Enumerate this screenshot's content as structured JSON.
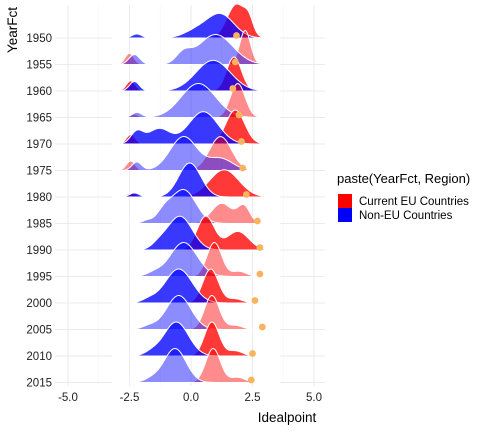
{
  "chart_data": {
    "type": "ridgeline",
    "xlabel": "Idealpoint",
    "ylabel": "YearFct",
    "xlim": [
      -5.0,
      5.0
    ],
    "x_ticks": [
      -5.0,
      -2.5,
      0.0,
      2.5,
      5.0
    ],
    "x_tick_labels": [
      "-5.0",
      "-2.5",
      "0.0",
      "2.5",
      "5.0"
    ],
    "categories": [
      "1950",
      "1955",
      "1960",
      "1965",
      "1970",
      "1975",
      "1980",
      "1985",
      "1990",
      "1995",
      "2000",
      "2005",
      "2010",
      "2015"
    ],
    "grid": true,
    "legend": {
      "title": "paste(YearFct, Region)",
      "position": "right",
      "entries": [
        "Current EU Countries",
        "Non-EU Countries"
      ]
    },
    "series_colors": {
      "Current EU Countries": "#ff0000",
      "Non-EU Countries": "#0000ff"
    },
    "point_color": "#f7b35d",
    "opacity_alternation": "even years lighter",
    "ridges": [
      {
        "year": "1950",
        "eu": [
          [
            1.85,
            0.38,
            1.0
          ],
          [
            2.35,
            0.18,
            0.35
          ]
        ],
        "noneu": [
          [
            1.2,
            0.55,
            0.7
          ],
          [
            -2.2,
            0.2,
            0.12
          ],
          [
            0.2,
            0.5,
            0.2
          ]
        ],
        "point": 1.85
      },
      {
        "year": "1955",
        "eu": [
          [
            2.2,
            0.22,
            0.85
          ],
          [
            -2.5,
            0.18,
            0.28
          ]
        ],
        "noneu": [
          [
            1.0,
            0.7,
            0.75
          ],
          [
            -2.3,
            0.22,
            0.25
          ],
          [
            -0.3,
            0.3,
            0.25
          ]
        ],
        "point": 1.8
      },
      {
        "year": "1960",
        "eu": [
          [
            1.75,
            0.3,
            1.0
          ],
          [
            -2.45,
            0.18,
            0.3
          ]
        ],
        "noneu": [
          [
            0.9,
            0.7,
            0.9
          ],
          [
            -2.3,
            0.2,
            0.28
          ]
        ],
        "point": 1.7
      },
      {
        "year": "1965",
        "eu": [
          [
            1.9,
            0.3,
            1.0
          ],
          [
            -2.3,
            0.15,
            0.1
          ]
        ],
        "noneu": [
          [
            0.3,
            0.7,
            1.0
          ],
          [
            -2.2,
            0.2,
            0.15
          ]
        ],
        "point": 1.95
      },
      {
        "year": "1970",
        "eu": [
          [
            1.8,
            0.38,
            1.0
          ],
          [
            -2.45,
            0.18,
            0.28
          ]
        ],
        "noneu": [
          [
            0.5,
            0.6,
            0.95
          ],
          [
            -1.3,
            0.45,
            0.45
          ],
          [
            -2.2,
            0.25,
            0.35
          ]
        ],
        "point": 2.05
      },
      {
        "year": "1975",
        "eu": [
          [
            1.2,
            0.45,
            1.0
          ],
          [
            -2.45,
            0.18,
            0.28
          ]
        ],
        "noneu": [
          [
            -0.3,
            0.55,
            1.0
          ],
          [
            -2.2,
            0.2,
            0.25
          ],
          [
            1.2,
            0.5,
            0.35
          ]
        ],
        "point": 2.1
      },
      {
        "year": "1980",
        "eu": [
          [
            1.35,
            0.6,
            0.8
          ],
          [
            -2.4,
            0.2,
            0.12
          ]
        ],
        "noneu": [
          [
            -0.05,
            0.45,
            1.0
          ],
          [
            -2.3,
            0.2,
            0.12
          ]
        ],
        "point": 2.25
      },
      {
        "year": "1985",
        "eu": [
          [
            1.25,
            0.42,
            0.6
          ],
          [
            2.15,
            0.25,
            0.5
          ]
        ],
        "noneu": [
          [
            -0.3,
            0.5,
            1.0
          ],
          [
            -1.1,
            0.3,
            0.3
          ],
          [
            -1.8,
            0.2,
            0.08
          ]
        ],
        "point": 2.7
      },
      {
        "year": "1990",
        "eu": [
          [
            0.6,
            0.35,
            1.0
          ],
          [
            1.9,
            0.45,
            0.55
          ]
        ],
        "noneu": [
          [
            -0.45,
            0.5,
            1.0
          ],
          [
            -1.3,
            0.3,
            0.15
          ]
        ],
        "point": 2.8
      },
      {
        "year": "1995",
        "eu": [
          [
            0.95,
            0.3,
            1.0
          ],
          [
            1.95,
            0.3,
            0.15
          ]
        ],
        "noneu": [
          [
            -0.3,
            0.55,
            1.0
          ],
          [
            -1.5,
            0.3,
            0.1
          ]
        ],
        "point": 2.8
      },
      {
        "year": "2000",
        "eu": [
          [
            0.8,
            0.32,
            1.0
          ],
          [
            1.8,
            0.3,
            0.12
          ]
        ],
        "noneu": [
          [
            -0.5,
            0.55,
            1.0
          ],
          [
            -1.7,
            0.3,
            0.1
          ]
        ],
        "point": 2.6
      },
      {
        "year": "2005",
        "eu": [
          [
            0.85,
            0.3,
            1.0
          ],
          [
            1.8,
            0.3,
            0.12
          ]
        ],
        "noneu": [
          [
            -0.5,
            0.5,
            1.0
          ],
          [
            -1.7,
            0.3,
            0.1
          ]
        ],
        "point": 2.9
      },
      {
        "year": "2010",
        "eu": [
          [
            0.85,
            0.3,
            1.0
          ],
          [
            1.8,
            0.3,
            0.15
          ]
        ],
        "noneu": [
          [
            -0.6,
            0.5,
            1.0
          ],
          [
            -1.6,
            0.3,
            0.1
          ]
        ],
        "point": 2.5
      },
      {
        "year": "2015",
        "eu": [
          [
            0.9,
            0.3,
            1.0
          ],
          [
            1.9,
            0.3,
            0.15
          ]
        ],
        "noneu": [
          [
            -0.65,
            0.45,
            1.0
          ],
          [
            -1.6,
            0.3,
            0.1
          ]
        ],
        "point": 2.45
      }
    ]
  }
}
